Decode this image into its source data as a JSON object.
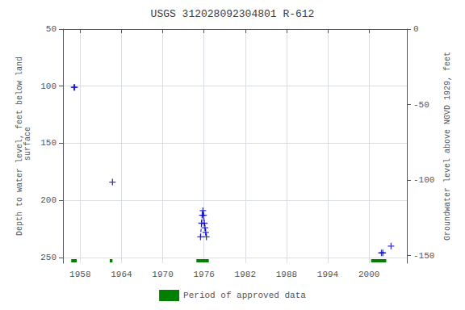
{
  "chart_data": {
    "type": "scatter",
    "title": "USGS 312028092304801 R-612",
    "ylabel": "Depth to water level, feet below land\n surface",
    "y2label": "Groundwater level above NGVD 1929, feet",
    "xlim": [
      1955.5,
      2005.5
    ],
    "xticks": [
      1958,
      1964,
      1970,
      1976,
      1982,
      1988,
      1994,
      2000
    ],
    "ylim": [
      255,
      50
    ],
    "yticks": [
      50,
      100,
      150,
      200,
      250
    ],
    "y2lim": [
      -155,
      0
    ],
    "y2ticks": [
      0,
      -50,
      -100,
      -150
    ],
    "grid": true,
    "legend": "bottom",
    "series": [
      {
        "type": "line",
        "line_style": "dashed",
        "color": "#0000cc",
        "x": [
          1975.5,
          1975.65,
          1975.75,
          1975.85,
          1975.95,
          1976.05,
          1976.15,
          1976.25,
          1976.35
        ],
        "values": [
          232,
          220,
          213,
          209,
          213,
          220,
          224,
          228,
          232
        ]
      },
      {
        "type": "scatter",
        "marker": "+",
        "color": "#0000cc",
        "x": [
          1957.1,
          1957.2,
          1962.7,
          1975.5,
          1975.65,
          1975.75,
          1975.85,
          1975.95,
          1976.05,
          1976.15,
          1976.25,
          1976.35,
          2001.8,
          2002.0,
          2003.2
        ],
        "values": [
          101,
          101,
          184,
          232,
          220,
          213,
          209,
          213,
          220,
          224,
          228,
          232,
          246,
          246,
          240
        ]
      },
      {
        "type": "bar",
        "orientation": "horizontal",
        "name": "Period of approved data",
        "color": "#008000",
        "start": [
          1956.7,
          1962.3,
          1974.9,
          2000.3
        ],
        "end": [
          1957.5,
          1962.7,
          1976.7,
          2002.5
        ]
      }
    ]
  }
}
